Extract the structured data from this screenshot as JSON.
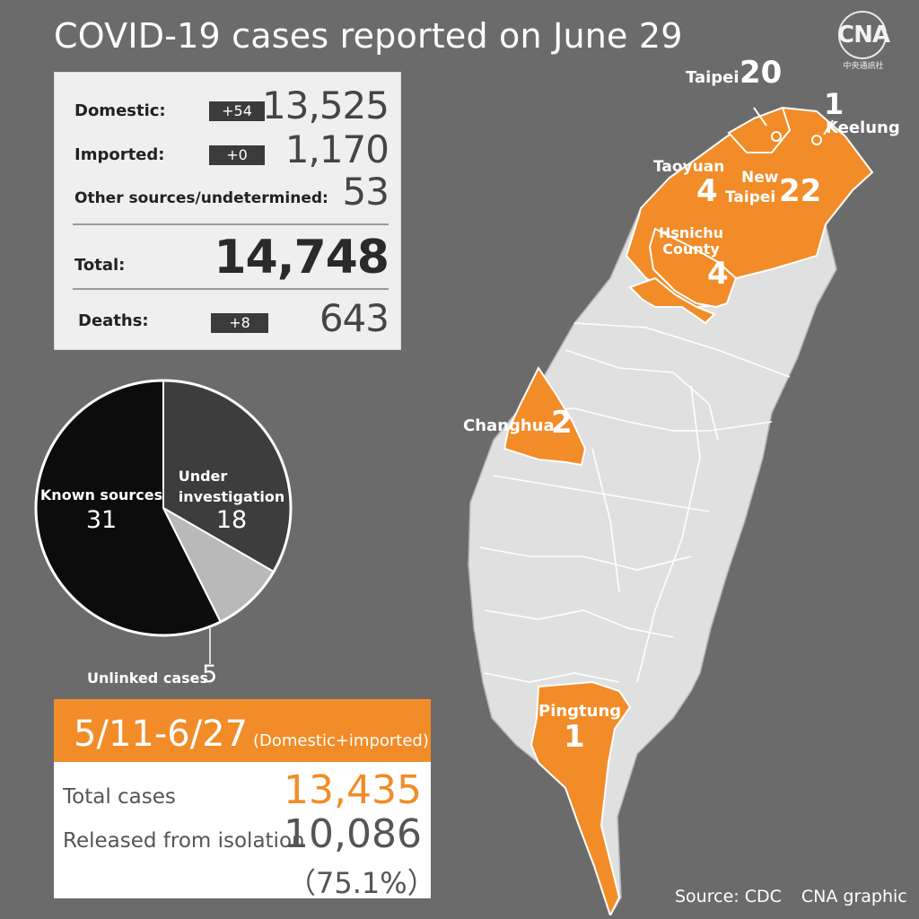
{
  "title": "COVID-19 cases reported on June 29",
  "logo": {
    "text": "CNA",
    "subtext": "中央通訊社"
  },
  "stats": {
    "domestic": {
      "label": "Domestic:",
      "delta": "+54",
      "value": "13,525"
    },
    "imported": {
      "label": "Imported:",
      "delta": "+0",
      "value": "1,170"
    },
    "other": {
      "label": "Other sources/undetermined:",
      "value": "53"
    },
    "total": {
      "label": "Total:",
      "value": "14,748"
    },
    "deaths": {
      "label": "Deaths:",
      "delta": "+8",
      "value": "643"
    }
  },
  "pie": {
    "known_label": "Known sources",
    "known_value": "31",
    "investigation_label_1": "Under",
    "investigation_label_2": "investigation",
    "investigation_value": "18",
    "unlinked_label": "Unlinked cases",
    "unlinked_value": "5"
  },
  "chart_data": {
    "type": "pie",
    "categories": [
      "Known sources",
      "Under investigation",
      "Unlinked cases"
    ],
    "values": [
      31,
      18,
      5
    ],
    "colors": [
      "#0c0c0c",
      "#3d3d3d",
      "#b9b9b9"
    ]
  },
  "period": {
    "range": "5/11-6/27",
    "note": "(Domestic+imported)",
    "total_label": "Total cases",
    "total_value": "13,435",
    "released_label": "Released from isolation",
    "released_value": "10,086",
    "released_pct": "（75.1%）"
  },
  "map": {
    "taipei": {
      "name": "Taipei",
      "value": "20"
    },
    "keelung": {
      "name": "Keelung",
      "value": "1"
    },
    "taoyuan": {
      "name": "Taoyuan",
      "value": "4"
    },
    "new_taipei": {
      "name_1": "New",
      "name_2": "Taipei",
      "value": "22"
    },
    "hsinchu": {
      "name_1": "Hsnichu",
      "name_2": "County",
      "value": "4"
    },
    "changhua": {
      "name": "Changhua",
      "value": "2"
    },
    "pingtung": {
      "name": "Pingtung",
      "value": "1"
    }
  },
  "colors": {
    "background": "#6b6b6b",
    "accent": "#f28c28",
    "land": "#e0e0e0",
    "panel": "#efefef"
  },
  "footer": {
    "source": "Source: CDC",
    "credit": "CNA graphic"
  }
}
